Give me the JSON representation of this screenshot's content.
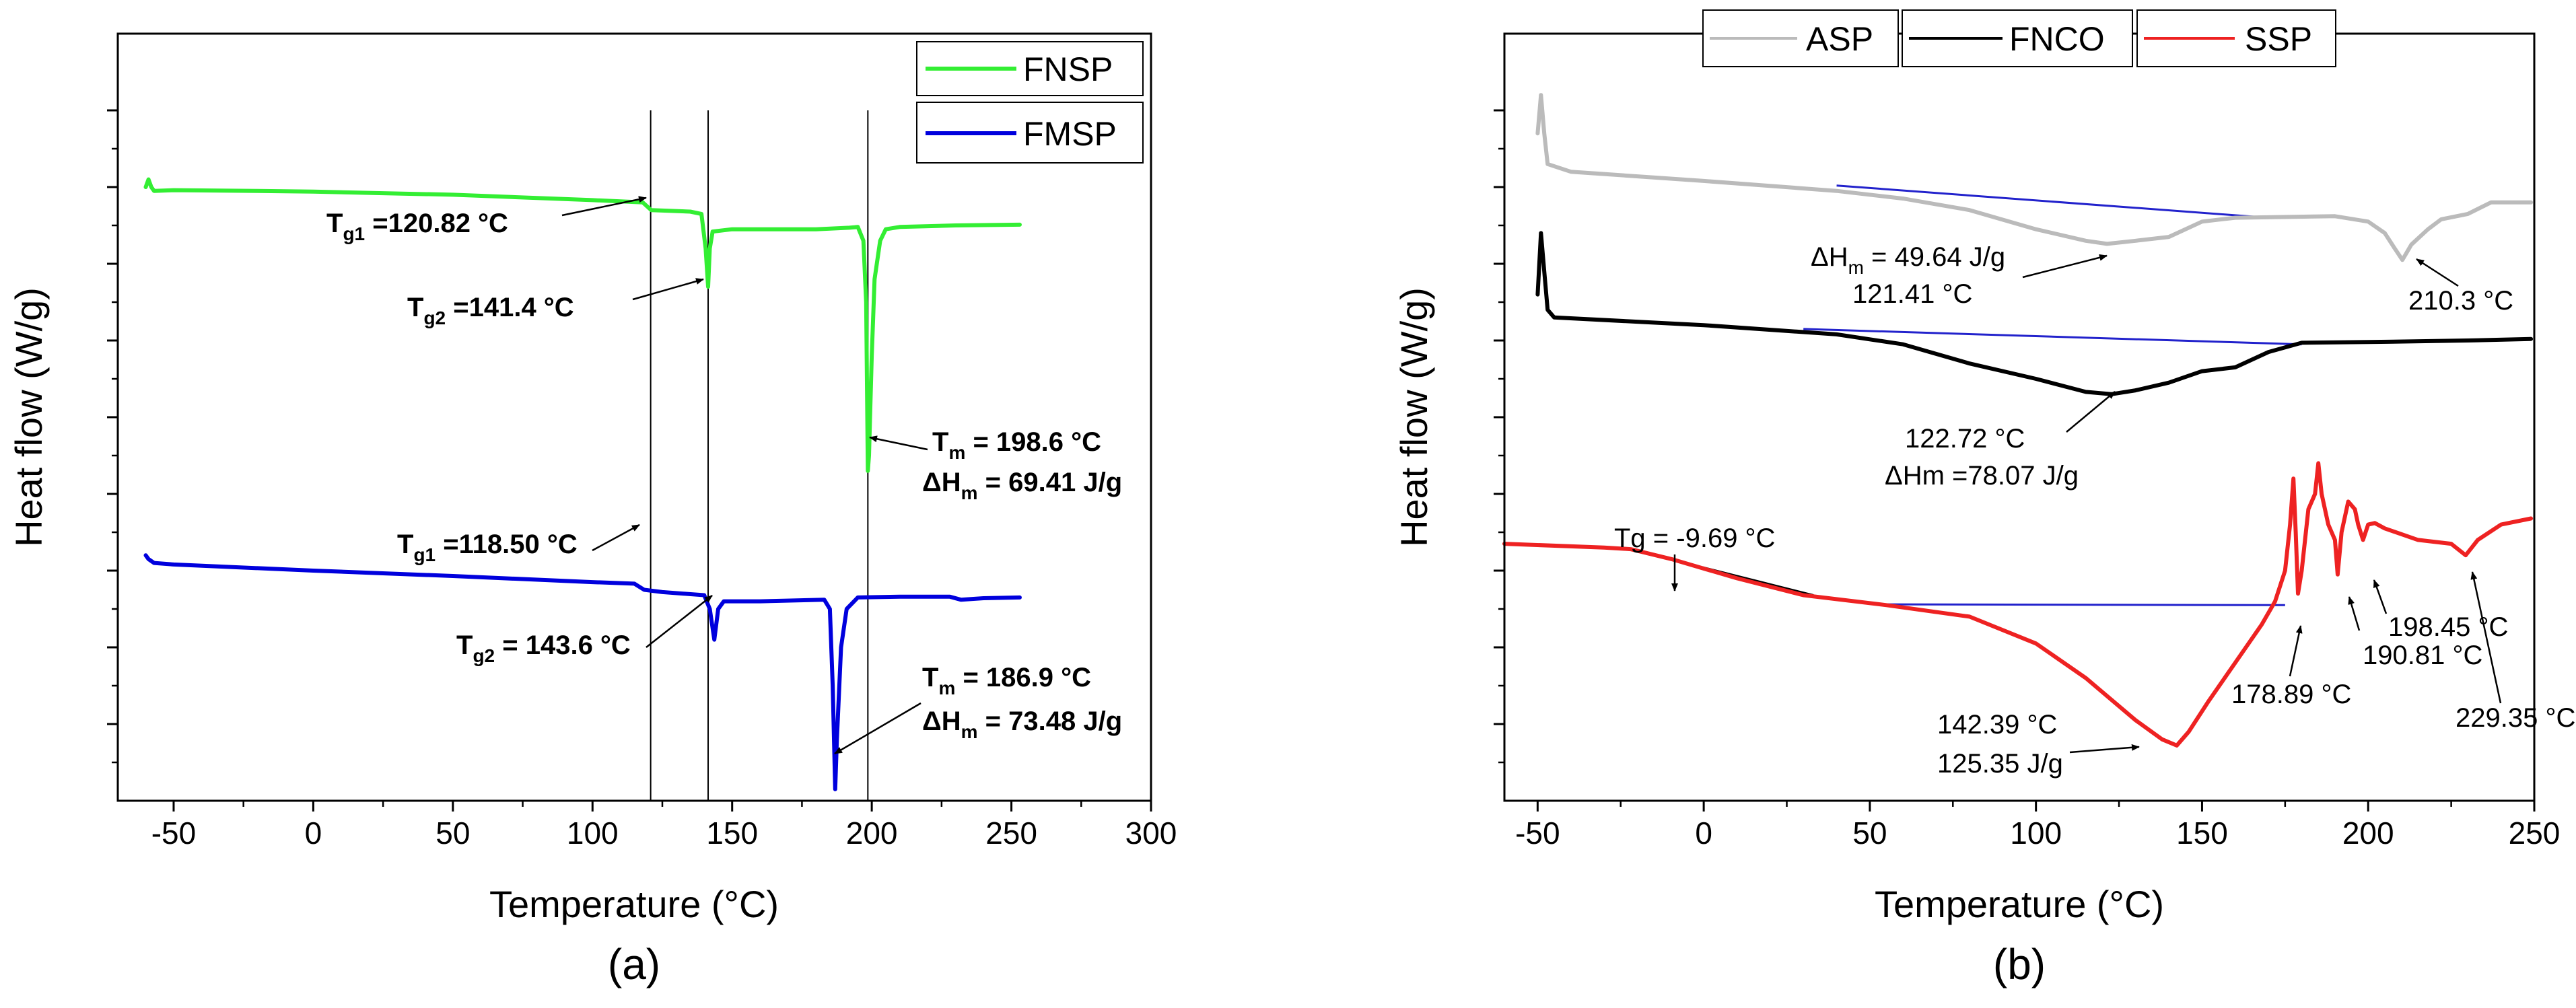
{
  "chart_data": [
    {
      "id": "a",
      "type": "line",
      "caption": "(a)",
      "xlabel": "Temperature (°C)",
      "ylabel": "Heat flow (W/g)",
      "xlim": [
        -70,
        300
      ],
      "ylim": [
        0,
        10
      ],
      "xticks": [
        -50,
        0,
        50,
        100,
        150,
        200,
        250,
        300
      ],
      "xtick_labels": [
        "-50",
        "0",
        "50",
        "100",
        "150",
        "200",
        "250",
        "300"
      ],
      "yticks": [
        1,
        2,
        3,
        4,
        5,
        6,
        7,
        8,
        9
      ],
      "y_tick_labels_shown": false,
      "vlines": [
        120.82,
        141.4,
        198.6
      ],
      "legend": [
        {
          "name": "FNSP",
          "color": "#33ee33"
        },
        {
          "name": "FMSP",
          "color": "#0000dd"
        }
      ],
      "series": [
        {
          "name": "FNSP",
          "color": "#33ee33",
          "points": [
            [
              -60,
              8.0
            ],
            [
              -59,
              8.1
            ],
            [
              -58,
              8.0
            ],
            [
              -57,
              7.95
            ],
            [
              -50,
              7.96
            ],
            [
              -20,
              7.95
            ],
            [
              0,
              7.94
            ],
            [
              50,
              7.9
            ],
            [
              100,
              7.83
            ],
            [
              118,
              7.8
            ],
            [
              121,
              7.7
            ],
            [
              135,
              7.68
            ],
            [
              139,
              7.65
            ],
            [
              140.5,
              7.2
            ],
            [
              141.4,
              6.7
            ],
            [
              142,
              7.2
            ],
            [
              143,
              7.42
            ],
            [
              150,
              7.45
            ],
            [
              180,
              7.45
            ],
            [
              192,
              7.47
            ],
            [
              195,
              7.48
            ],
            [
              197,
              7.3
            ],
            [
              198,
              6.5
            ],
            [
              198.6,
              4.3
            ],
            [
              199,
              4.5
            ],
            [
              200,
              5.8
            ],
            [
              201,
              6.8
            ],
            [
              203,
              7.3
            ],
            [
              205,
              7.45
            ],
            [
              210,
              7.48
            ],
            [
              230,
              7.5
            ],
            [
              253,
              7.51
            ]
          ]
        },
        {
          "name": "FMSP",
          "color": "#0000dd",
          "points": [
            [
              -60,
              3.2
            ],
            [
              -59,
              3.15
            ],
            [
              -57,
              3.1
            ],
            [
              -50,
              3.08
            ],
            [
              0,
              3.0
            ],
            [
              50,
              2.93
            ],
            [
              100,
              2.85
            ],
            [
              115,
              2.83
            ],
            [
              118.5,
              2.75
            ],
            [
              125,
              2.72
            ],
            [
              140,
              2.68
            ],
            [
              142,
              2.5
            ],
            [
              143.6,
              2.1
            ],
            [
              145,
              2.5
            ],
            [
              147,
              2.6
            ],
            [
              160,
              2.6
            ],
            [
              183,
              2.62
            ],
            [
              185,
              2.5
            ],
            [
              186,
              1.5
            ],
            [
              186.9,
              0.15
            ],
            [
              187.5,
              0.8
            ],
            [
              189,
              2.0
            ],
            [
              191,
              2.5
            ],
            [
              195,
              2.65
            ],
            [
              210,
              2.66
            ],
            [
              228,
              2.66
            ],
            [
              232,
              2.62
            ],
            [
              240,
              2.64
            ],
            [
              253,
              2.65
            ]
          ]
        }
      ],
      "annotations": [
        {
          "main": "T",
          "sub": "g1",
          "rest": " =120.82 °C",
          "temp": 120.82
        },
        {
          "main": "T",
          "sub": "g2",
          "rest": " =141.4 °C",
          "temp": 141.4
        },
        {
          "main": "T",
          "sub": "m",
          "rest": " = 198.6 °C",
          "temp": 198.6
        },
        {
          "main": "ΔH",
          "sub": "m",
          "rest": " = 69.41 J/g"
        },
        {
          "main": "T",
          "sub": "g1",
          "rest": " =118.50 °C",
          "temp": 118.5
        },
        {
          "main": "T",
          "sub": "g2",
          "rest": " = 143.6 °C",
          "temp": 143.6
        },
        {
          "main": "T",
          "sub": "m",
          "rest": " = 186.9 °C",
          "temp": 186.9
        },
        {
          "main": "ΔH",
          "sub": "m",
          "rest": " = 73.48 J/g"
        }
      ]
    },
    {
      "id": "b",
      "type": "line",
      "caption": "(b)",
      "xlabel": "Temperature (°C)",
      "ylabel": "Heat flow (W/g)",
      "xlim": [
        -60,
        250
      ],
      "ylim": [
        0,
        10
      ],
      "xticks": [
        -50,
        0,
        50,
        100,
        150,
        200,
        250
      ],
      "xtick_labels": [
        "-50",
        "0",
        "50",
        "100",
        "150",
        "200",
        "250"
      ],
      "yticks": [
        1,
        2,
        3,
        4,
        5,
        6,
        7,
        8,
        9
      ],
      "y_tick_labels_shown": false,
      "legend": [
        {
          "name": "ASP",
          "color": "#bbbbbb"
        },
        {
          "name": "FNCO",
          "color": "#000000"
        },
        {
          "name": "SSP",
          "color": "#ee2222"
        }
      ],
      "series": [
        {
          "name": "ASP",
          "color": "#bbbbbb",
          "points": [
            [
              -50,
              8.7
            ],
            [
              -49,
              9.2
            ],
            [
              -48,
              8.7
            ],
            [
              -47,
              8.3
            ],
            [
              -40,
              8.2
            ],
            [
              0,
              8.08
            ],
            [
              40,
              7.95
            ],
            [
              60,
              7.85
            ],
            [
              80,
              7.7
            ],
            [
              100,
              7.45
            ],
            [
              115,
              7.3
            ],
            [
              121.41,
              7.26
            ],
            [
              130,
              7.3
            ],
            [
              140,
              7.35
            ],
            [
              150,
              7.55
            ],
            [
              160,
              7.6
            ],
            [
              190,
              7.62
            ],
            [
              200,
              7.55
            ],
            [
              205,
              7.4
            ],
            [
              208,
              7.2
            ],
            [
              210.3,
              7.05
            ],
            [
              213,
              7.25
            ],
            [
              218,
              7.45
            ],
            [
              222,
              7.58
            ],
            [
              230,
              7.65
            ],
            [
              237,
              7.8
            ],
            [
              249,
              7.8
            ]
          ]
        },
        {
          "name": "FNCO",
          "color": "#000000",
          "points": [
            [
              -50,
              6.6
            ],
            [
              -49,
              7.4
            ],
            [
              -48,
              6.9
            ],
            [
              -47,
              6.4
            ],
            [
              -45,
              6.3
            ],
            [
              0,
              6.2
            ],
            [
              40,
              6.08
            ],
            [
              60,
              5.95
            ],
            [
              80,
              5.7
            ],
            [
              100,
              5.5
            ],
            [
              115,
              5.33
            ],
            [
              122.72,
              5.3
            ],
            [
              130,
              5.35
            ],
            [
              140,
              5.45
            ],
            [
              150,
              5.6
            ],
            [
              160,
              5.65
            ],
            [
              170,
              5.85
            ],
            [
              180,
              5.97
            ],
            [
              200,
              5.98
            ],
            [
              230,
              6.0
            ],
            [
              249,
              6.02
            ]
          ]
        },
        {
          "name": "SSP",
          "color": "#ee2222",
          "points": [
            [
              -60,
              3.35
            ],
            [
              -30,
              3.3
            ],
            [
              -22,
              3.28
            ],
            [
              -9.69,
              3.15
            ],
            [
              10,
              2.9
            ],
            [
              30,
              2.68
            ],
            [
              55,
              2.55
            ],
            [
              80,
              2.4
            ],
            [
              100,
              2.05
            ],
            [
              115,
              1.6
            ],
            [
              130,
              1.05
            ],
            [
              138,
              0.8
            ],
            [
              142.39,
              0.72
            ],
            [
              146,
              0.9
            ],
            [
              152,
              1.3
            ],
            [
              160,
              1.8
            ],
            [
              168,
              2.3
            ],
            [
              172,
              2.6
            ],
            [
              175,
              3.0
            ],
            [
              176.5,
              3.6
            ],
            [
              177.5,
              4.2
            ],
            [
              178.2,
              3.5
            ],
            [
              178.89,
              2.7
            ],
            [
              180,
              3.0
            ],
            [
              182,
              3.8
            ],
            [
              184,
              4.0
            ],
            [
              185,
              4.4
            ],
            [
              186,
              4.0
            ],
            [
              188,
              3.6
            ],
            [
              190,
              3.4
            ],
            [
              190.81,
              2.95
            ],
            [
              192,
              3.5
            ],
            [
              194,
              3.9
            ],
            [
              196,
              3.8
            ],
            [
              197,
              3.6
            ],
            [
              198.45,
              3.4
            ],
            [
              200,
              3.6
            ],
            [
              202,
              3.62
            ],
            [
              205,
              3.55
            ],
            [
              215,
              3.4
            ],
            [
              225,
              3.35
            ],
            [
              229.35,
              3.2
            ],
            [
              233,
              3.4
            ],
            [
              240,
              3.6
            ],
            [
              249,
              3.68
            ]
          ]
        }
      ],
      "baselines": [
        {
          "color": "#2222cc",
          "from": [
            40,
            8.02
          ],
          "to": [
            170,
            7.6
          ]
        },
        {
          "color": "#2222cc",
          "from": [
            30,
            6.15
          ],
          "to": [
            180,
            5.95
          ]
        },
        {
          "color": "#2222cc",
          "from": [
            55,
            2.56
          ],
          "to": [
            175,
            2.55
          ]
        },
        {
          "color": "#000000",
          "from": [
            -22,
            3.28
          ],
          "to": [
            33,
            2.68
          ]
        }
      ],
      "annotations": [
        {
          "main": "ΔH",
          "sub": "m",
          "rest": " = 49.64 J/g"
        },
        {
          "text": "121.41 °C"
        },
        {
          "text": "210.3 °C"
        },
        {
          "text": "122.72 °C"
        },
        {
          "text": "ΔHm =78.07 J/g"
        },
        {
          "text": "Tg = -9.69 °C"
        },
        {
          "text": "198.45 °C"
        },
        {
          "text": "190.81 °C"
        },
        {
          "text": "178.89 °C"
        },
        {
          "text": "229.35 °C"
        },
        {
          "text": "142.39 °C"
        },
        {
          "text": "125.35 J/g"
        }
      ]
    }
  ]
}
